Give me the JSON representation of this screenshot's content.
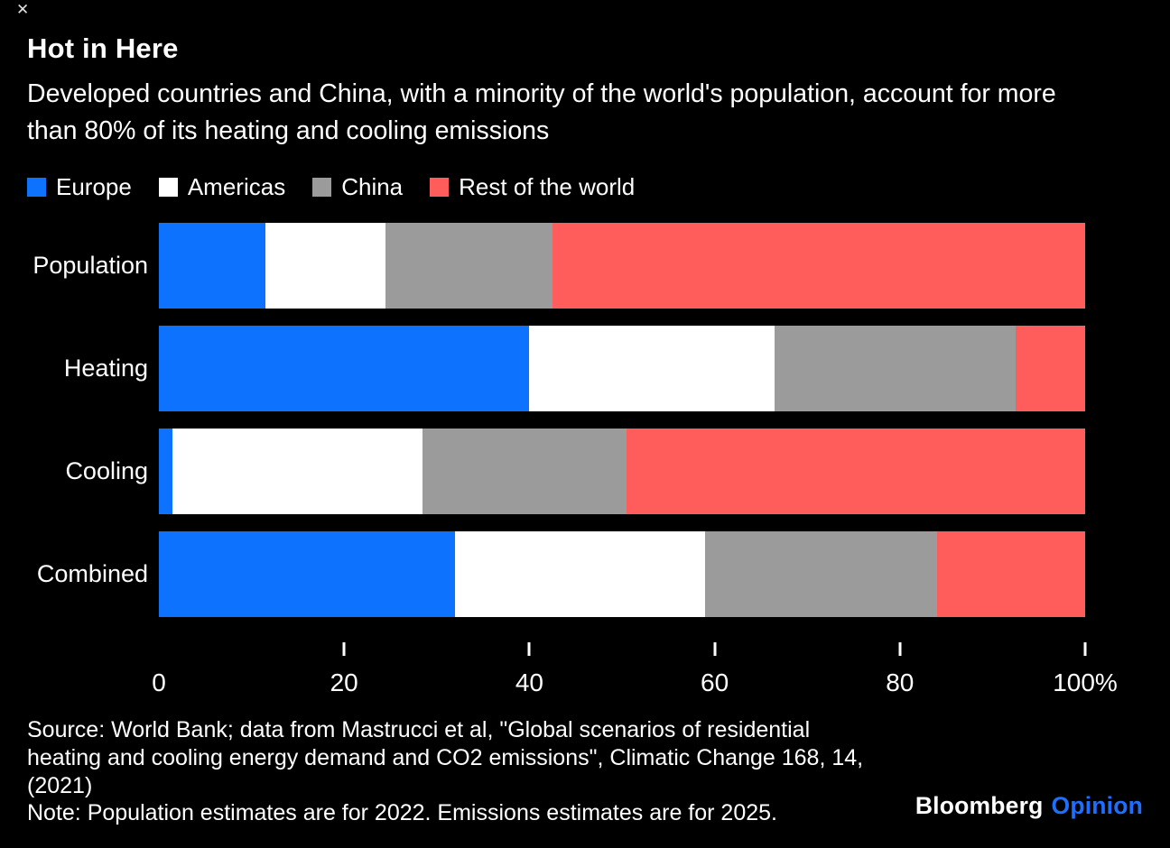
{
  "ui": {
    "close_icon": "✕"
  },
  "title": "Hot in Here",
  "subtitle": "Developed countries and China, with a minority of the world's population, account for more than 80% of its heating and cooling emissions",
  "chart_data": {
    "type": "bar",
    "orientation": "horizontal",
    "stacked": true,
    "title": "Hot in Here",
    "categories": [
      "Population",
      "Heating",
      "Cooling",
      "Combined"
    ],
    "series": [
      {
        "name": "Europe",
        "color": "#0D73FF",
        "values": [
          11.5,
          40,
          1.5,
          32
        ]
      },
      {
        "name": "Americas",
        "color": "#FFFFFF",
        "values": [
          13,
          26.5,
          27,
          27
        ]
      },
      {
        "name": "China",
        "color": "#9B9B9B",
        "values": [
          18,
          26,
          22,
          25
        ]
      },
      {
        "name": "Rest of the world",
        "color": "#FF5C5C",
        "values": [
          57.5,
          7.5,
          49.5,
          16
        ]
      }
    ],
    "xlim": [
      0,
      100
    ],
    "x_ticks": [
      0,
      20,
      40,
      60,
      80,
      100
    ],
    "x_tick_labels": [
      "0",
      "20",
      "40",
      "60",
      "80",
      "100%"
    ],
    "x_tick_marks": [
      20,
      40,
      60,
      80,
      100
    ],
    "legend_position": "top",
    "grid": false,
    "background": "#000000",
    "text_color": "#FFFFFF"
  },
  "footer": {
    "lines": [
      "Source: World Bank; data from Mastrucci et al, \"Global scenarios of residential",
      "heating and cooling energy demand and CO2 emissions\", Climatic Change 168, 14,",
      "(2021)",
      "Note: Population estimates are for 2022. Emissions estimates are for 2025."
    ]
  },
  "branding": {
    "bloomberg": "Bloomberg",
    "opinion": "Opinion"
  }
}
